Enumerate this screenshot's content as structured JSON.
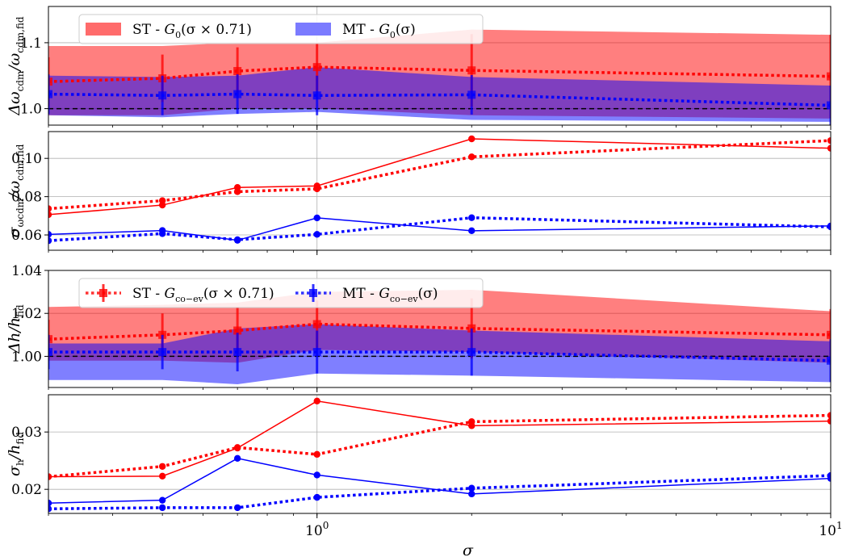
{
  "chart_data": [
    {
      "type": "line",
      "panel": "delta-omega-cdm",
      "ylabel": "Δω_cdm/ω_cdm,fid",
      "ylabel_parts": {
        "main": "Δω",
        "sub1": "cdm",
        "mid": "/ω",
        "sub2": "cdm,fid"
      },
      "xscale": "log",
      "xlim": [
        0.3,
        10
      ],
      "ylim": [
        0.975,
        1.155
      ],
      "yticks": [
        1.0,
        1.1
      ],
      "ytick_labels": [
        "1.0",
        "1.1"
      ],
      "grid": true,
      "reference_line": 1.0,
      "legend": {
        "placement": "top-left",
        "entries": [
          {
            "label_pre": "ST - ",
            "label_func": "G",
            "label_sub": "0",
            "label_arg": "(σ × 0.71)",
            "color": "#ff6b6b"
          },
          {
            "label_pre": "MT - ",
            "label_func": "G",
            "label_sub": "0",
            "label_arg": "(σ)",
            "color": "#7b7bff"
          }
        ]
      },
      "series": [
        {
          "name": "ST - G0(σ × 0.71)",
          "color": "#ff0000",
          "x": [
            0.3,
            0.5,
            0.7,
            1.0,
            2.0,
            10.0
          ],
          "y": [
            1.041,
            1.046,
            1.057,
            1.063,
            1.058,
            1.049
          ],
          "yerr": [
            0.037,
            0.036,
            0.036,
            0.036,
            0.055,
            0.063
          ],
          "band_low": [
            0.99,
            0.99,
            1.0,
            1.0,
            0.99,
            0.985
          ],
          "band_high": [
            1.095,
            1.095,
            1.1,
            1.1,
            1.12,
            1.112
          ]
        },
        {
          "name": "MT - G0(σ)",
          "color": "#0000ff",
          "x": [
            0.3,
            0.5,
            0.7,
            1.0,
            2.0,
            10.0
          ],
          "y": [
            1.022,
            1.02,
            1.022,
            1.02,
            1.021,
            1.005
          ],
          "yerr": [
            0.03,
            0.03,
            0.03,
            0.03,
            0.03,
            0.03
          ],
          "band_low": [
            0.99,
            0.987,
            0.992,
            0.995,
            0.983,
            0.98
          ],
          "band_high": [
            1.05,
            1.048,
            1.05,
            1.063,
            1.048,
            1.035
          ]
        }
      ]
    },
    {
      "type": "line",
      "panel": "sigma-omega-cdm",
      "ylabel": "σ_ω_cdm/ω_cdm,fid",
      "ylabel_parts": {
        "main": "σ",
        "sub1": "ωcdm",
        "mid": "/ω",
        "sub2": "cdm,fid"
      },
      "xscale": "log",
      "xlim": [
        0.3,
        10
      ],
      "ylim": [
        0.052,
        0.114
      ],
      "yticks": [
        0.06,
        0.08,
        0.1
      ],
      "ytick_labels": [
        "0.06",
        "0.08",
        "0.10"
      ],
      "grid": true,
      "series": [
        {
          "name": "ST solid",
          "color": "#ff0000",
          "linestyle": "solid",
          "x": [
            0.3,
            0.5,
            0.7,
            1.0,
            2.0,
            10.0
          ],
          "y": [
            0.0706,
            0.0756,
            0.0848,
            0.0856,
            0.1102,
            0.1053
          ]
        },
        {
          "name": "ST dotted",
          "color": "#ff0000",
          "linestyle": "dotted",
          "x": [
            0.3,
            0.5,
            0.7,
            1.0,
            2.0,
            10.0
          ],
          "y": [
            0.0737,
            0.0779,
            0.0826,
            0.0841,
            0.1008,
            0.1093
          ]
        },
        {
          "name": "MT solid",
          "color": "#0000ff",
          "linestyle": "solid",
          "x": [
            0.3,
            0.5,
            0.7,
            1.0,
            2.0,
            10.0
          ],
          "y": [
            0.0603,
            0.0623,
            0.0572,
            0.0689,
            0.0622,
            0.0647
          ]
        },
        {
          "name": "MT dotted",
          "color": "#0000ff",
          "linestyle": "dotted",
          "x": [
            0.3,
            0.5,
            0.7,
            1.0,
            2.0,
            10.0
          ],
          "y": [
            0.057,
            0.0607,
            0.0575,
            0.0603,
            0.069,
            0.0642
          ]
        }
      ]
    },
    {
      "type": "line",
      "panel": "delta-h",
      "ylabel": "Δh/h_fid",
      "ylabel_parts": {
        "main": "Δh",
        "sub1": "",
        "mid": "/h",
        "sub2": "fid"
      },
      "xscale": "log",
      "xlim": [
        0.3,
        10
      ],
      "ylim": [
        0.9855,
        1.04
      ],
      "yticks": [
        1.0,
        1.02,
        1.04
      ],
      "ytick_labels": [
        "1.00",
        "1.02",
        "1.04"
      ],
      "grid": true,
      "reference_line": 1.0,
      "legend": {
        "placement": "top-left",
        "entries": [
          {
            "label_pre": "ST - ",
            "label_func": "G",
            "label_sub": "co−ev",
            "label_arg": "(σ × 0.71)",
            "color": "#ff0000",
            "linestyle": "dotted"
          },
          {
            "label_pre": "MT - ",
            "label_func": "G",
            "label_sub": "co−ev",
            "label_arg": "(σ)",
            "color": "#0000ff",
            "linestyle": "dotted"
          }
        ]
      },
      "series": [
        {
          "name": "ST - Gco−ev(σ × 0.71)",
          "color": "#ff0000",
          "x": [
            0.3,
            0.5,
            0.7,
            1.0,
            2.0,
            10.0
          ],
          "y": [
            1.008,
            1.01,
            1.012,
            1.015,
            1.013,
            1.01
          ],
          "yerr": [
            0.009,
            0.01,
            0.011,
            0.011,
            0.014,
            0.012
          ],
          "band_low": [
            0.998,
            0.998,
            0.997,
            1.003,
            1.002,
            0.997
          ],
          "band_high": [
            1.023,
            1.024,
            1.025,
            1.03,
            1.031,
            1.021
          ]
        },
        {
          "name": "MT - Gco−ev(σ)",
          "color": "#0000ff",
          "x": [
            0.3,
            0.5,
            0.7,
            1.0,
            2.0,
            10.0
          ],
          "y": [
            1.002,
            1.002,
            1.002,
            1.002,
            1.002,
            0.998
          ],
          "yerr": [
            0.008,
            0.008,
            0.009,
            0.01,
            0.011,
            0.01
          ],
          "band_low": [
            0.989,
            0.989,
            0.987,
            0.992,
            0.991,
            0.988
          ],
          "band_high": [
            1.006,
            1.006,
            1.013,
            1.015,
            1.012,
            1.007
          ]
        }
      ]
    },
    {
      "type": "line",
      "panel": "sigma-h",
      "ylabel": "σ_h/h_fid",
      "ylabel_parts": {
        "main": "σ",
        "sub1": "h",
        "mid": "/h",
        "sub2": "fid"
      },
      "xlabel": "σ",
      "xscale": "log",
      "xlim": [
        0.3,
        10
      ],
      "ylim": [
        0.0158,
        0.0365
      ],
      "yticks": [
        0.02,
        0.03
      ],
      "ytick_labels": [
        "0.02",
        "0.03"
      ],
      "xticks": [
        1,
        10
      ],
      "xtick_labels": [
        {
          "base": "10",
          "exp": "0"
        },
        {
          "base": "10",
          "exp": "1"
        }
      ],
      "grid": true,
      "series": [
        {
          "name": "ST solid",
          "color": "#ff0000",
          "linestyle": "solid",
          "x": [
            0.3,
            0.5,
            0.7,
            1.0,
            2.0,
            10.0
          ],
          "y": [
            0.0222,
            0.0223,
            0.0272,
            0.0354,
            0.0311,
            0.0319
          ]
        },
        {
          "name": "ST dotted",
          "color": "#ff0000",
          "linestyle": "dotted",
          "x": [
            0.3,
            0.5,
            0.7,
            1.0,
            2.0,
            10.0
          ],
          "y": [
            0.0222,
            0.024,
            0.0273,
            0.0261,
            0.0318,
            0.0329
          ]
        },
        {
          "name": "MT solid",
          "color": "#0000ff",
          "linestyle": "solid",
          "x": [
            0.3,
            0.5,
            0.7,
            1.0,
            2.0,
            10.0
          ],
          "y": [
            0.0176,
            0.0181,
            0.0254,
            0.0225,
            0.0192,
            0.0219
          ]
        },
        {
          "name": "MT dotted",
          "color": "#0000ff",
          "linestyle": "dotted",
          "x": [
            0.3,
            0.5,
            0.7,
            1.0,
            2.0,
            10.0
          ],
          "y": [
            0.0166,
            0.0168,
            0.0168,
            0.0186,
            0.0202,
            0.0224
          ]
        }
      ]
    }
  ]
}
